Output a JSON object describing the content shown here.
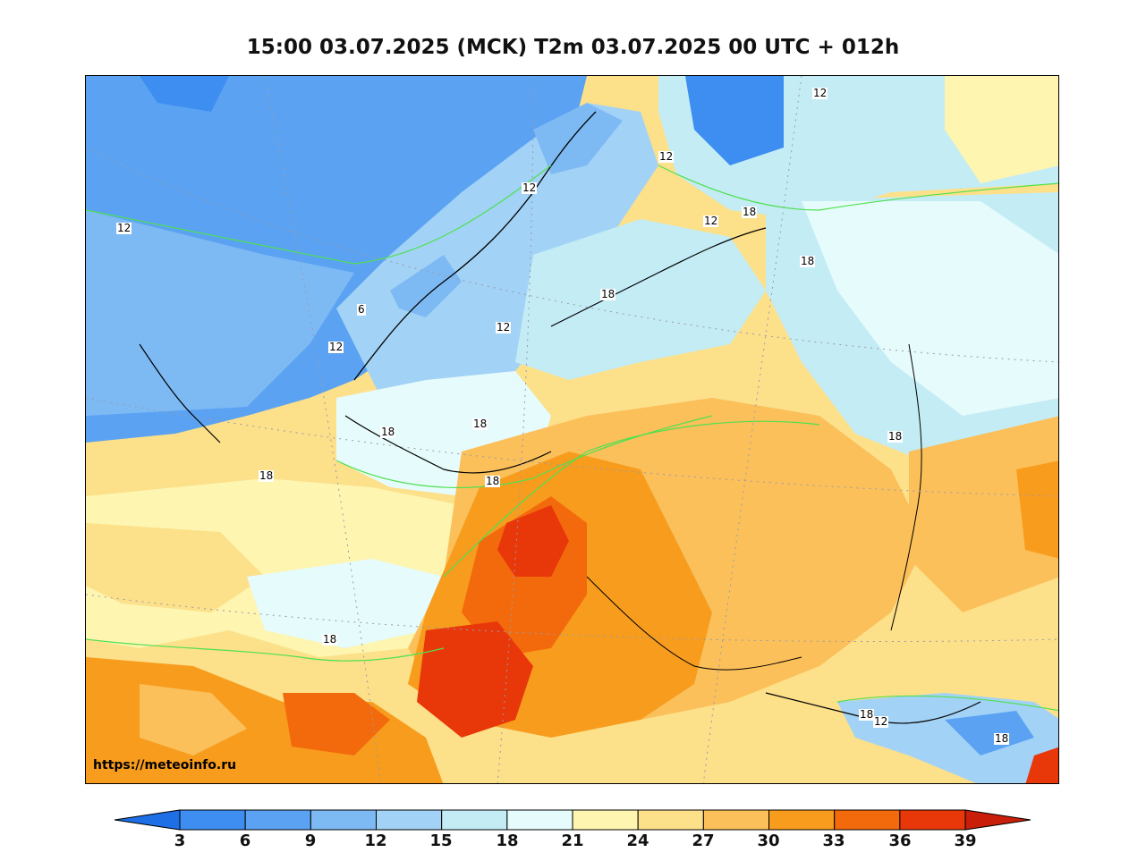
{
  "title": "15:00 03.07.2025 (MCK) T2m 03.07.2025 00 UTC + 012h",
  "watermark": "https://meteoinfo.ru",
  "map": {
    "contour_labels": [
      "12",
      "12",
      "12",
      "12",
      "12",
      "12",
      "12",
      "12",
      "6",
      "18",
      "18",
      "18",
      "18",
      "18",
      "18",
      "18",
      "18",
      "18",
      "18",
      "18"
    ]
  },
  "colorbar": {
    "ticks": [
      "3",
      "6",
      "9",
      "12",
      "15",
      "18",
      "21",
      "24",
      "27",
      "30",
      "33",
      "36",
      "39"
    ],
    "colors": [
      "#1e6ee6",
      "#3d8ef0",
      "#5ba3f2",
      "#7dbaf4",
      "#a2d2f6",
      "#c4ecf5",
      "#e6fbfb",
      "#fdf5b0",
      "#fce08a",
      "#fbc05a",
      "#f89c1e",
      "#f36a0c",
      "#e8380a",
      "#c81e0a"
    ]
  }
}
